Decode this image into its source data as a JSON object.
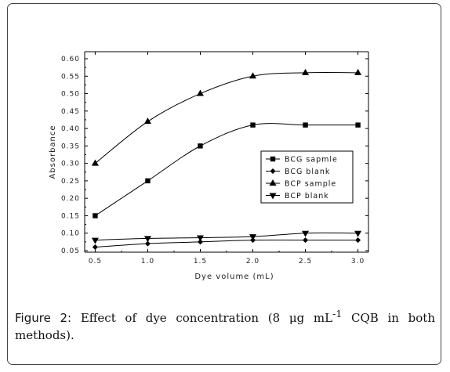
{
  "caption": {
    "label": "Figure 2:",
    "text_before": " Effect of dye concentration (8 μg mL",
    "superscript": "-1",
    "text_after": " CQB in both methods)."
  },
  "chart_data": {
    "type": "line",
    "title": "",
    "xlabel": "Dye volume (mL)",
    "ylabel": "Absorbance",
    "xlim": [
      0.5,
      3.0
    ],
    "ylim": [
      0.05,
      0.6
    ],
    "x_ticks": [
      "0.5",
      "1.0",
      "1.5",
      "2.0",
      "2.5",
      "3.0"
    ],
    "y_ticks": [
      "0.05",
      "0.10",
      "0.15",
      "0.20",
      "0.25",
      "0.30",
      "0.35",
      "0.40",
      "0.45",
      "0.50",
      "0.55",
      "0.60"
    ],
    "x": [
      0.5,
      1.0,
      1.5,
      2.0,
      2.5,
      3.0
    ],
    "legend_position": "center-right",
    "series": [
      {
        "name": "BCG sapmle",
        "marker": "square",
        "values": [
          0.15,
          0.25,
          0.35,
          0.41,
          0.41,
          0.41
        ]
      },
      {
        "name": "BCG blank",
        "marker": "diamond",
        "values": [
          0.06,
          0.07,
          0.075,
          0.08,
          0.08,
          0.08
        ]
      },
      {
        "name": "BCP sample",
        "marker": "triangle-up",
        "values": [
          0.3,
          0.42,
          0.5,
          0.55,
          0.56,
          0.56
        ]
      },
      {
        "name": "BCP blank",
        "marker": "triangle-down",
        "values": [
          0.08,
          0.085,
          0.087,
          0.09,
          0.1,
          0.1
        ]
      }
    ]
  }
}
